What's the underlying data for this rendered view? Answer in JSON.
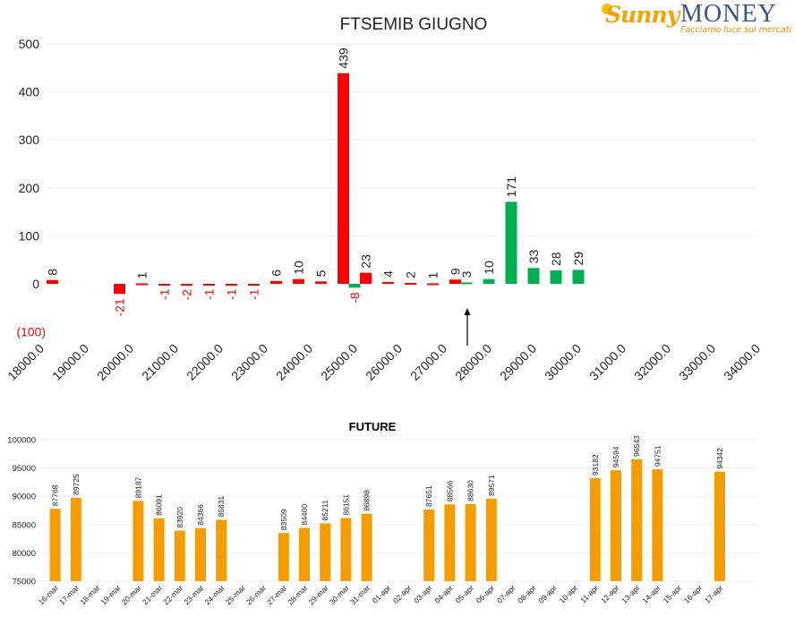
{
  "logo": {
    "brand_a": "Sunny",
    "brand_b": "MONEY",
    "tagline": "Facciamo luce sui mercati"
  },
  "colors": {
    "negative": "#ff0000",
    "positive": "#00b050",
    "future": "#f59c00",
    "grid": "#eeeeee",
    "text": "#222222"
  },
  "chart_data": [
    {
      "type": "bar",
      "title": "FTSEMIB GIUGNO",
      "xlabel": "",
      "ylabel": "",
      "x_ticks": [
        "18000.0",
        "19000.0",
        "20000.0",
        "21000.0",
        "22000.0",
        "23000.0",
        "24000.0",
        "25000.0",
        "26000.0",
        "27000.0",
        "28000.0",
        "29000.0",
        "30000.0",
        "31000.0",
        "32000.0",
        "33000.0",
        "34000.0"
      ],
      "y_ticks": [
        "500",
        "400",
        "300",
        "200",
        "100",
        "0",
        "(100)"
      ],
      "ylim": [
        -100,
        500
      ],
      "xlim": [
        18000,
        34000
      ],
      "grid": true,
      "annotation": "arrow pointing up at 27500",
      "bars": [
        {
          "x": 18250,
          "value": 8,
          "label": "8",
          "color": "negative"
        },
        {
          "x": 19750,
          "value": -21,
          "label": "-21",
          "color": "negative"
        },
        {
          "x": 20250,
          "value": 1,
          "label": "1",
          "color": "negative"
        },
        {
          "x": 20750,
          "value": -1,
          "label": "-1",
          "color": "negative"
        },
        {
          "x": 21250,
          "value": -2,
          "label": "-2",
          "color": "negative"
        },
        {
          "x": 21750,
          "value": -1,
          "label": "-1",
          "color": "negative"
        },
        {
          "x": 22250,
          "value": -1,
          "label": "-1",
          "color": "negative"
        },
        {
          "x": 22750,
          "value": -1,
          "label": "-1",
          "color": "negative"
        },
        {
          "x": 23250,
          "value": 6,
          "label": "6",
          "color": "negative"
        },
        {
          "x": 23750,
          "value": 10,
          "label": "10",
          "color": "negative"
        },
        {
          "x": 24250,
          "value": 5,
          "label": "5",
          "color": "negative"
        },
        {
          "x": 24750,
          "value": 439,
          "label": "439",
          "color": "negative"
        },
        {
          "x": 25000,
          "value": -8,
          "label": "-8",
          "color": "positive"
        },
        {
          "x": 25250,
          "value": 23,
          "label": "23",
          "color": "negative"
        },
        {
          "x": 25750,
          "value": 4,
          "label": "4",
          "color": "negative"
        },
        {
          "x": 26250,
          "value": 2,
          "label": "2",
          "color": "negative"
        },
        {
          "x": 26750,
          "value": 1,
          "label": "1",
          "color": "negative"
        },
        {
          "x": 27250,
          "value": 9,
          "label": "9",
          "color": "negative"
        },
        {
          "x": 27500,
          "value": 3,
          "label": "3",
          "color": "positive"
        },
        {
          "x": 28000,
          "value": 10,
          "label": "10",
          "color": "positive"
        },
        {
          "x": 28500,
          "value": 171,
          "label": "171",
          "color": "positive"
        },
        {
          "x": 29000,
          "value": 33,
          "label": "33",
          "color": "positive"
        },
        {
          "x": 29500,
          "value": 28,
          "label": "28",
          "color": "positive"
        },
        {
          "x": 30000,
          "value": 29,
          "label": "29",
          "color": "positive"
        }
      ]
    },
    {
      "type": "bar",
      "title": "FUTURE",
      "xlabel": "",
      "ylabel": "",
      "ylim": [
        75000,
        100000
      ],
      "y_ticks": [
        "100000",
        "95000",
        "90000",
        "85000",
        "80000",
        "75000"
      ],
      "categories": [
        "16-mar",
        "17-mar",
        "18-mar",
        "19-mar",
        "20-mar",
        "21-mar",
        "22-mar",
        "23-mar",
        "24-mar",
        "25-mar",
        "26-mar",
        "27-mar",
        "28-mar",
        "29-mar",
        "30-mar",
        "31-mar",
        "01-apr",
        "02-apr",
        "03-apr",
        "04-apr",
        "05-apr",
        "06-apr",
        "07-apr",
        "08-apr",
        "09-apr",
        "10-apr",
        "11-apr",
        "12-apr",
        "13-apr",
        "14-apr",
        "15-apr",
        "16-apr",
        "17-apr"
      ],
      "values": [
        87768,
        89725,
        null,
        null,
        89187,
        86091,
        83920,
        84366,
        85831,
        null,
        null,
        83509,
        84400,
        85211,
        86151,
        86898,
        null,
        null,
        87651,
        88566,
        88630,
        89571,
        null,
        null,
        null,
        null,
        93182,
        94594,
        96543,
        94751,
        null,
        null,
        94342
      ],
      "data_labels": [
        "87768",
        "89725",
        "",
        "",
        "89187",
        "86091",
        "83920",
        "84366",
        "85831",
        "",
        "",
        "83509",
        "84400",
        "85211",
        "86151",
        "86898",
        "",
        "",
        "87651",
        "88566",
        "88630",
        "89571",
        "",
        "",
        "",
        "",
        "93182",
        "94594",
        "96543",
        "94751",
        "",
        "",
        "94342"
      ]
    }
  ]
}
